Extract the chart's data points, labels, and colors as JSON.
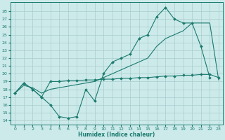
{
  "xlabel": "Humidex (Indice chaleur)",
  "background_color": "#cceaea",
  "grid_color": "#aacccc",
  "line_color": "#1a7a6e",
  "xlim": [
    -0.5,
    23.5
  ],
  "ylim": [
    13.5,
    29.2
  ],
  "xticks": [
    0,
    1,
    2,
    3,
    4,
    5,
    6,
    7,
    8,
    9,
    10,
    11,
    12,
    13,
    14,
    15,
    16,
    17,
    18,
    19,
    20,
    21,
    22,
    23
  ],
  "yticks": [
    14,
    15,
    16,
    17,
    18,
    19,
    20,
    21,
    22,
    23,
    24,
    25,
    26,
    27,
    28
  ],
  "curve1_x": [
    0,
    1,
    2,
    3,
    4,
    5,
    6,
    7,
    8,
    9,
    10,
    11,
    12,
    13,
    14,
    15,
    16,
    17,
    18,
    19,
    20,
    21,
    22
  ],
  "curve1_y": [
    17.5,
    18.8,
    18.0,
    17.0,
    16.0,
    14.5,
    14.3,
    14.5,
    18.0,
    16.5,
    20.0,
    21.5,
    22.0,
    22.5,
    24.5,
    25.0,
    27.3,
    28.5,
    27.0,
    26.5,
    26.5,
    23.5,
    19.5
  ],
  "curve2_x": [
    0,
    1,
    2,
    3,
    4,
    5,
    6,
    7,
    8,
    9,
    10,
    11,
    12,
    13,
    14,
    15,
    16,
    17,
    18,
    19,
    20,
    21,
    22,
    23
  ],
  "curve2_y": [
    17.5,
    18.5,
    18.2,
    17.5,
    18.0,
    18.2,
    18.4,
    18.6,
    18.8,
    19.0,
    19.5,
    20.0,
    20.5,
    21.0,
    21.5,
    22.0,
    23.5,
    24.5,
    25.0,
    25.5,
    26.5,
    26.5,
    26.5,
    19.2
  ],
  "curve3_x": [
    0,
    1,
    2,
    3,
    4,
    5,
    6,
    7,
    8,
    9,
    10,
    11,
    12,
    13,
    14,
    15,
    16,
    17,
    18,
    19,
    20,
    21,
    22,
    23
  ],
  "curve3_y": [
    17.5,
    18.8,
    18.0,
    17.0,
    19.0,
    19.0,
    19.1,
    19.1,
    19.2,
    19.2,
    19.3,
    19.3,
    19.4,
    19.4,
    19.5,
    19.5,
    19.6,
    19.7,
    19.7,
    19.8,
    19.8,
    19.9,
    19.9,
    19.5
  ]
}
